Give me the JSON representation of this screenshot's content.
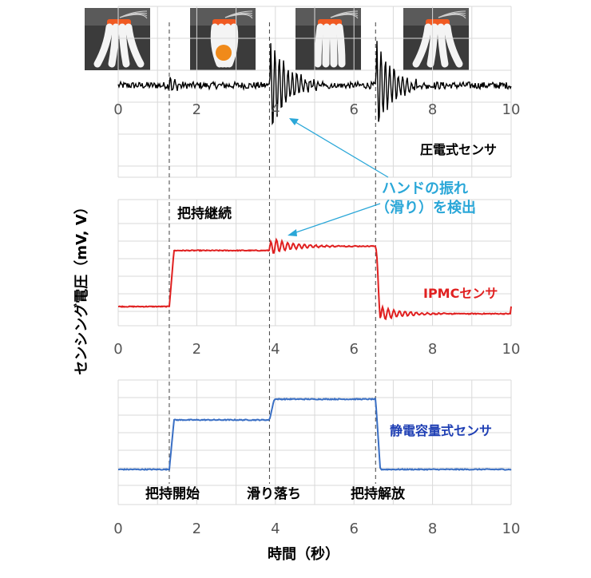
{
  "photo_strip": {
    "count": 4,
    "description_icons": [
      "gripper-open-photo",
      "gripper-grasp-photo",
      "gripper-slip-photo",
      "gripper-release-photo"
    ]
  },
  "x_axis": {
    "ticks": [
      "0",
      "2",
      "4",
      "6",
      "8",
      "10"
    ],
    "title": "時間（秒）",
    "range": [
      0,
      10
    ]
  },
  "y_axis_title": "センシング電圧（mV, V）",
  "event_lines": {
    "times": [
      1.3,
      3.85,
      6.55
    ],
    "bottom_labels": [
      "把持開始",
      "滑り落ち",
      "把持解放"
    ]
  },
  "annotations": {
    "hold_continue": "把持継続",
    "detect_line1": "ハンドの振れ",
    "detect_line2": "（滑り）を検出",
    "detect_color": "#2aa7d8"
  },
  "sensor_labels": {
    "piezo": "圧電式センサ",
    "ipmc": "IPMCセンサ",
    "capacitive": "静電容量式センサ"
  },
  "colors": {
    "piezo": "#000000",
    "ipmc": "#e02020",
    "capacitive": "#3a6fc4",
    "grid": "#d9d9d9",
    "event_line": "#404040"
  },
  "chart_data": [
    {
      "type": "line",
      "name_label": "圧電式センサ",
      "xlim": [
        0,
        10
      ],
      "shape": "noise baseline with damped oscillation bursts",
      "baseline": 0,
      "bursts": [
        {
          "t": 1.3,
          "amplitude": 0.25,
          "decay": 8
        },
        {
          "t": 3.85,
          "amplitude": 1.0,
          "decay": 2.2
        },
        {
          "t": 6.55,
          "amplitude": 1.0,
          "decay": 2.5
        }
      ]
    },
    {
      "type": "line",
      "name_label": "IPMCセンサ",
      "xlim": [
        0,
        10
      ],
      "levels": [
        {
          "from": 0,
          "to": 1.3,
          "value": 0.0
        },
        {
          "from": 1.3,
          "to": 3.85,
          "value": 0.78
        },
        {
          "from": 3.85,
          "to": 6.55,
          "value": 0.84
        },
        {
          "from": 6.55,
          "to": 10,
          "value": -0.1
        }
      ],
      "oscillations": [
        {
          "t": 3.85,
          "amplitude": 0.12
        },
        {
          "t": 6.55,
          "amplitude": 0.12
        }
      ]
    },
    {
      "type": "line",
      "name_label": "静電容量式センサ",
      "xlim": [
        0,
        10
      ],
      "levels": [
        {
          "from": 0,
          "to": 1.3,
          "value": 0.0
        },
        {
          "from": 1.3,
          "to": 3.85,
          "value": 0.62
        },
        {
          "from": 3.85,
          "to": 6.55,
          "value": 0.88
        },
        {
          "from": 6.55,
          "to": 10,
          "value": 0.0
        }
      ]
    }
  ]
}
